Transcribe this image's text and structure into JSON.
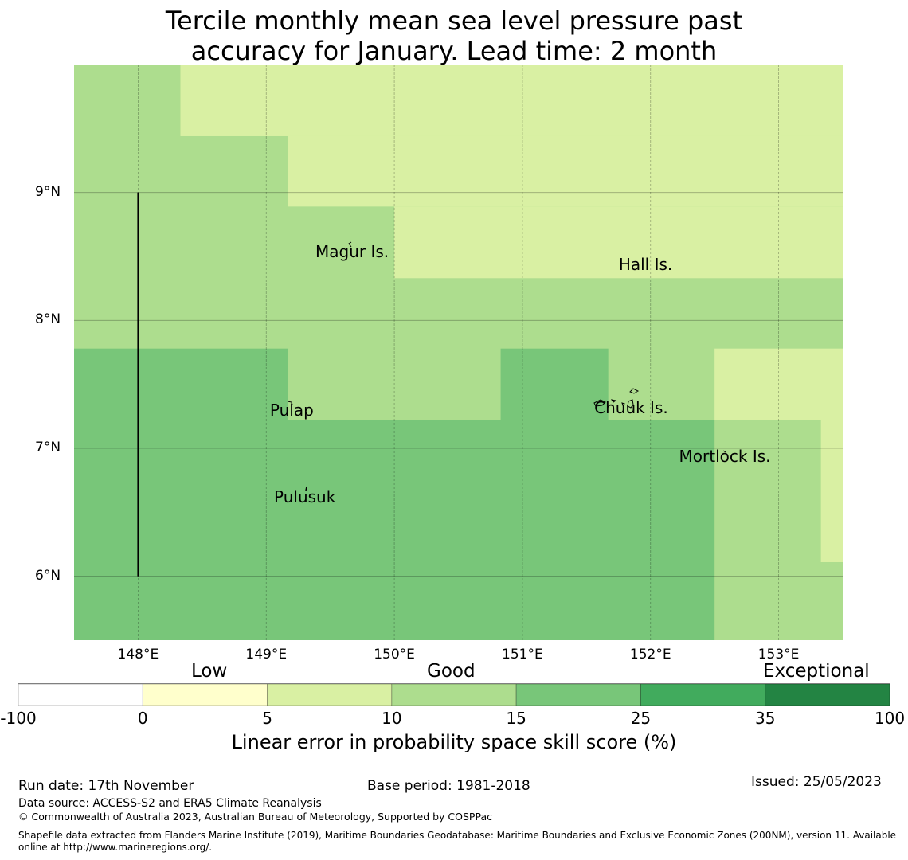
{
  "title": {
    "line1": "Tercile monthly mean sea level pressure past",
    "line2": "accuracy for January. Lead time: 2 month"
  },
  "map": {
    "lon_range": [
      147.5,
      153.5
    ],
    "lat_range": [
      5.5,
      10.0
    ],
    "lon_ticks": [
      {
        "value": 148,
        "label": "148°E"
      },
      {
        "value": 149,
        "label": "149°E"
      },
      {
        "value": 150,
        "label": "150°E"
      },
      {
        "value": 151,
        "label": "151°E"
      },
      {
        "value": 152,
        "label": "152°E"
      },
      {
        "value": 153,
        "label": "153°E"
      }
    ],
    "lat_ticks": [
      {
        "value": 9,
        "label": "9°N"
      },
      {
        "value": 8,
        "label": "8°N"
      },
      {
        "value": 7,
        "label": "7°N"
      },
      {
        "value": 6,
        "label": "6°N"
      }
    ],
    "skill_cells": [
      {
        "lon0": 147.5,
        "lon1": 153.5,
        "lat0": 5.5,
        "lat1": 10.0,
        "class": 3
      },
      {
        "lon0": 148.33,
        "lon1": 153.5,
        "lat0": 9.44,
        "lat1": 10.0,
        "class": 2
      },
      {
        "lon0": 149.17,
        "lon1": 153.5,
        "lat0": 8.89,
        "lat1": 9.44,
        "class": 2
      },
      {
        "lon0": 150.0,
        "lon1": 153.5,
        "lat0": 8.33,
        "lat1": 8.89,
        "class": 2
      },
      {
        "lon0": 147.5,
        "lon1": 149.17,
        "lat0": 5.5,
        "lat1": 7.78,
        "class": 4
      },
      {
        "lon0": 149.17,
        "lon1": 152.5,
        "lat0": 5.5,
        "lat1": 7.22,
        "class": 4
      },
      {
        "lon0": 150.83,
        "lon1": 151.67,
        "lat0": 7.22,
        "lat1": 7.78,
        "class": 4
      },
      {
        "lon0": 152.5,
        "lon1": 153.5,
        "lat0": 7.22,
        "lat1": 7.78,
        "class": 2
      },
      {
        "lon0": 153.33,
        "lon1": 153.5,
        "lat0": 6.11,
        "lat1": 7.22,
        "class": 2
      }
    ],
    "boundary_line": {
      "lon": 148.0,
      "lat0": 6.0,
      "lat1": 9.0
    },
    "places": [
      {
        "name": "Magur Is.",
        "lon": 149.67,
        "lat": 8.6
      },
      {
        "name": "Hall Is.",
        "lon": 151.96,
        "lat": 8.5
      },
      {
        "name": "Pulap",
        "lon": 149.2,
        "lat": 7.36
      },
      {
        "name": "Chuuk Is.",
        "lon": 151.85,
        "lat": 7.38
      },
      {
        "name": "Mortlock Is.",
        "lon": 152.58,
        "lat": 7.0
      },
      {
        "name": "Pulusuk",
        "lon": 149.3,
        "lat": 6.68
      }
    ]
  },
  "colorbar": {
    "categories": [
      "Low",
      "Good",
      "Exceptional"
    ],
    "colors": [
      "#ffffff",
      "#ffffcc",
      "#d9f0a3",
      "#addd8e",
      "#78c679",
      "#41ab5d",
      "#238443"
    ],
    "ticks": [
      "-100",
      "0",
      "5",
      "10",
      "15",
      "25",
      "35",
      "100"
    ],
    "label": "Linear error in probability space skill score (%)"
  },
  "footer": {
    "run_date": "Run date: 17th November",
    "base_period": "Base period: 1981-2018",
    "issued": "Issued: 25/05/2023",
    "data_source": "Data source: ACCESS-S2 and ERA5 Climate Reanalysis",
    "copyright": "© Commonwealth of Australia 2023, Australian Bureau of Meteorology, Supported by COSPPac",
    "shapefile1": "Shapefile data extracted from Flanders Marine Institute (2019), Maritime Boundaries Geodatabase: Maritime Boundaries and Exclusive Economic Zones (200NM), version 11. Available",
    "shapefile2": "online at http://www.marineregions.org/."
  }
}
